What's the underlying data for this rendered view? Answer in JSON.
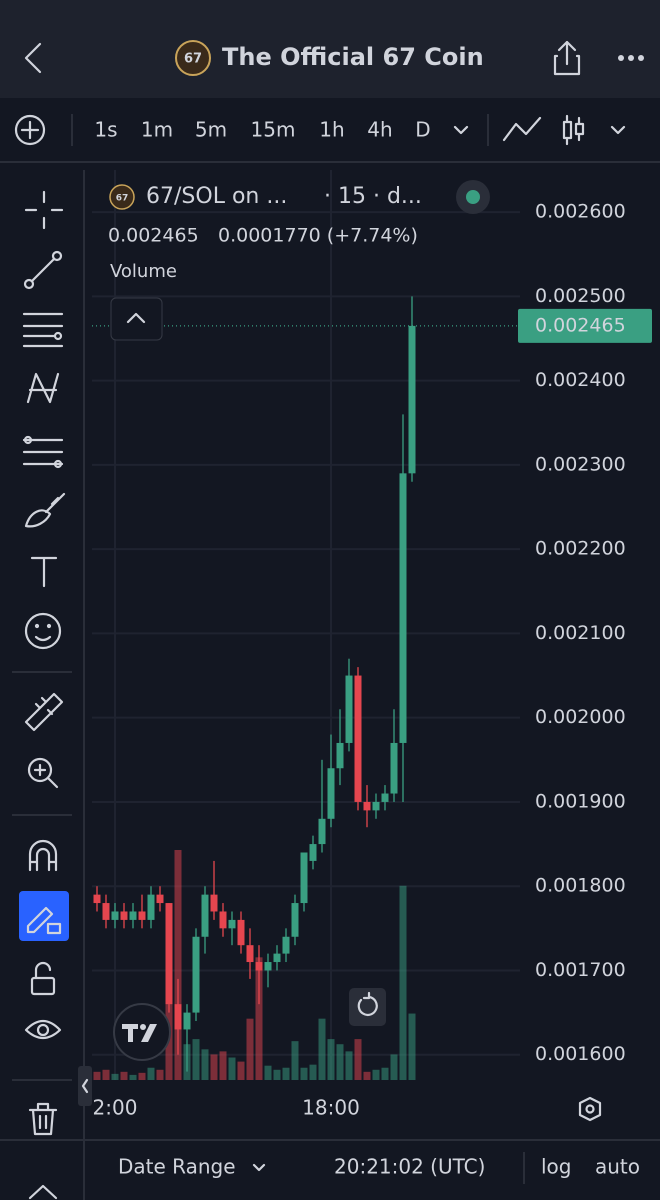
{
  "header": {
    "logo_text": "67",
    "title": "The Official 67 Coin"
  },
  "toolbar": {
    "timeframes": [
      "1s",
      "1m",
      "5m",
      "15m",
      "1h",
      "4h",
      "D"
    ],
    "selected": 3
  },
  "legend": {
    "symbol": "67/SOL on ...",
    "interval": "· 15 · d...",
    "change": "0.0001770 (+7.74%)",
    "volume_label": "Volume"
  },
  "chart_data": {
    "type": "candlestick",
    "categories": [
      null,
      null,
      "2:00",
      null,
      null,
      null,
      null,
      null,
      null,
      null,
      null,
      null,
      null,
      null,
      null,
      null,
      null,
      null,
      null,
      null,
      null,
      null,
      null,
      null,
      null,
      null,
      "18:00",
      null,
      null,
      null,
      null,
      null,
      null,
      null,
      null,
      null
    ],
    "series": [
      {
        "name": "open",
        "values": [
          0.00179,
          0.00178,
          0.00176,
          0.00177,
          0.00176,
          0.00177,
          0.00176,
          0.00179,
          0.00178,
          0.00166,
          0.00163,
          0.00165,
          0.00174,
          0.00179,
          0.00177,
          0.00175,
          0.00176,
          0.00173,
          0.00171,
          0.0017,
          0.00171,
          0.00172,
          0.00174,
          0.00178,
          0.00183,
          0.00185,
          0.00188,
          0.00194,
          0.00197,
          0.00205,
          0.0019,
          0.00189,
          0.0019,
          0.00191,
          0.00197,
          0.00229
        ]
      },
      {
        "name": "high",
        "values": [
          0.0018,
          0.00179,
          0.00178,
          0.00178,
          0.00178,
          0.00179,
          0.0018,
          0.0018,
          0.00178,
          0.00169,
          0.00166,
          0.00175,
          0.0018,
          0.00183,
          0.00178,
          0.00177,
          0.00177,
          0.00175,
          0.00173,
          0.00172,
          0.00173,
          0.00175,
          0.00179,
          0.00184,
          0.00186,
          0.00195,
          0.00198,
          0.00201,
          0.00207,
          0.00206,
          0.00192,
          0.00191,
          0.00192,
          0.00201,
          0.00236,
          0.0025
        ]
      },
      {
        "name": "low",
        "values": [
          0.00177,
          0.00175,
          0.00175,
          0.00175,
          0.00175,
          0.00175,
          0.00175,
          0.00177,
          0.00165,
          0.0016,
          0.00158,
          0.00164,
          0.00172,
          0.00176,
          0.00174,
          0.00173,
          0.00172,
          0.00169,
          0.00166,
          0.00168,
          0.0017,
          0.00171,
          0.00173,
          0.00177,
          0.00182,
          0.00184,
          0.00187,
          0.00192,
          0.00196,
          0.00189,
          0.00187,
          0.00188,
          0.00189,
          0.0019,
          0.0019,
          0.00228
        ]
      },
      {
        "name": "close",
        "values": [
          0.00178,
          0.00176,
          0.00177,
          0.00176,
          0.00177,
          0.00176,
          0.00179,
          0.00178,
          0.00166,
          0.00163,
          0.00165,
          0.00174,
          0.00179,
          0.00177,
          0.00175,
          0.00176,
          0.00173,
          0.00171,
          0.0017,
          0.00171,
          0.00172,
          0.00174,
          0.00178,
          0.00184,
          0.00185,
          0.00188,
          0.00194,
          0.00197,
          0.00205,
          0.0019,
          0.00189,
          0.0019,
          0.00191,
          0.00197,
          0.00229,
          0.002465
        ]
      },
      {
        "name": "volume",
        "values": [
          8,
          10,
          6,
          8,
          5,
          7,
          12,
          10,
          170,
          225,
          35,
          40,
          30,
          25,
          28,
          22,
          18,
          60,
          120,
          14,
          10,
          12,
          38,
          12,
          15,
          60,
          40,
          35,
          28,
          40,
          8,
          10,
          12,
          25,
          190,
          65
        ]
      }
    ],
    "up_color": "#3a9f82",
    "down_color": "#e5464f",
    "ylim": [
      0.00157,
      0.00265
    ],
    "yticks": [
      {
        "value": 0.0016,
        "label": "0.001600"
      },
      {
        "value": 0.0017,
        "label": "0.001700"
      },
      {
        "value": 0.0018,
        "label": "0.001800"
      },
      {
        "value": 0.0019,
        "label": "0.001900"
      },
      {
        "value": 0.002,
        "label": "0.002000"
      },
      {
        "value": 0.0021,
        "label": "0.002100"
      },
      {
        "value": 0.0022,
        "label": "0.002200"
      },
      {
        "value": 0.0023,
        "label": "0.002300"
      },
      {
        "value": 0.0024,
        "label": "0.002400"
      },
      {
        "value": 0.0025,
        "label": "0.002500"
      },
      {
        "value": 0.0026,
        "label": "0.002600"
      }
    ],
    "grid": true
  },
  "footer": {
    "date_range": "Date Range",
    "clock": "20:21:02 (UTC)",
    "log": "log",
    "auto": "auto"
  }
}
